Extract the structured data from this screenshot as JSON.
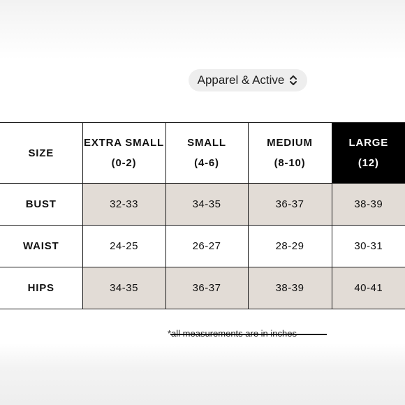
{
  "selector": {
    "label": "Apparel & Active",
    "icon": "chevron-updown-icon"
  },
  "table": {
    "header_label": "SIZE",
    "columns": [
      {
        "name": "EXTRA SMALL",
        "range": "(0-2)"
      },
      {
        "name": "SMALL",
        "range": "(4-6)"
      },
      {
        "name": "MEDIUM",
        "range": "(8-10)"
      },
      {
        "name": "LARGE",
        "range": "(12)",
        "highlighted": true
      }
    ],
    "rows": [
      {
        "label": "BUST",
        "values": [
          "32-33",
          "34-35",
          "36-37",
          "38-39"
        ]
      },
      {
        "label": "WAIST",
        "values": [
          "24-25",
          "26-27",
          "28-29",
          "30-31"
        ]
      },
      {
        "label": "HIPS",
        "values": [
          "34-35",
          "36-37",
          "38-39",
          "40-41"
        ]
      }
    ]
  },
  "footnote": "*all measurements are in inches",
  "colors": {
    "shade": "#e2dcd6",
    "highlight": "#000000",
    "pill": "#eeeeee"
  }
}
